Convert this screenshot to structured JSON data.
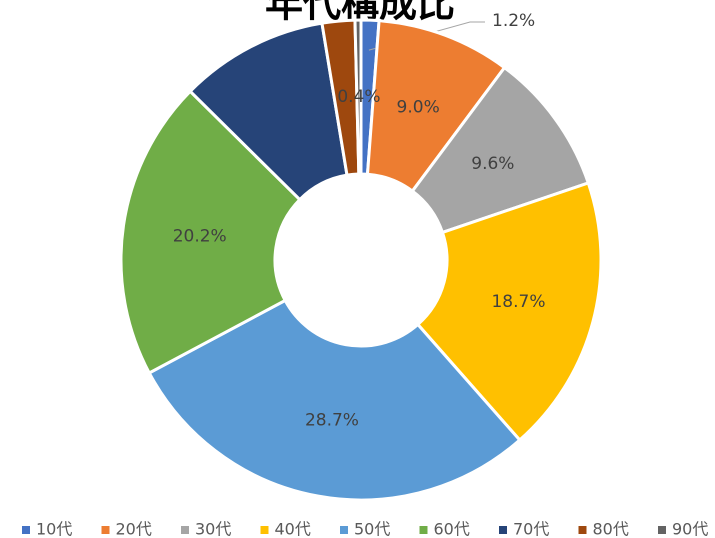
{
  "chart_data": {
    "type": "donut",
    "title": "年代構成比",
    "categories": [
      "10代",
      "20代",
      "30代",
      "40代",
      "50代",
      "60代",
      "70代",
      "80代",
      "90代"
    ],
    "values": [
      1.2,
      9.0,
      9.6,
      18.7,
      28.7,
      20.2,
      10.0,
      2.2,
      0.4
    ],
    "value_labels": [
      "1.2%",
      "9.0%",
      "9.6%",
      "18.7%",
      "28.7%",
      "20.2%",
      null,
      null,
      "0.4%"
    ],
    "colors": [
      "#4472c4",
      "#ed7d31",
      "#a5a5a5",
      "#ffc000",
      "#5b9bd5",
      "#70ad47",
      "#264478",
      "#9e480e",
      "#636363"
    ],
    "legend": "bottom"
  }
}
